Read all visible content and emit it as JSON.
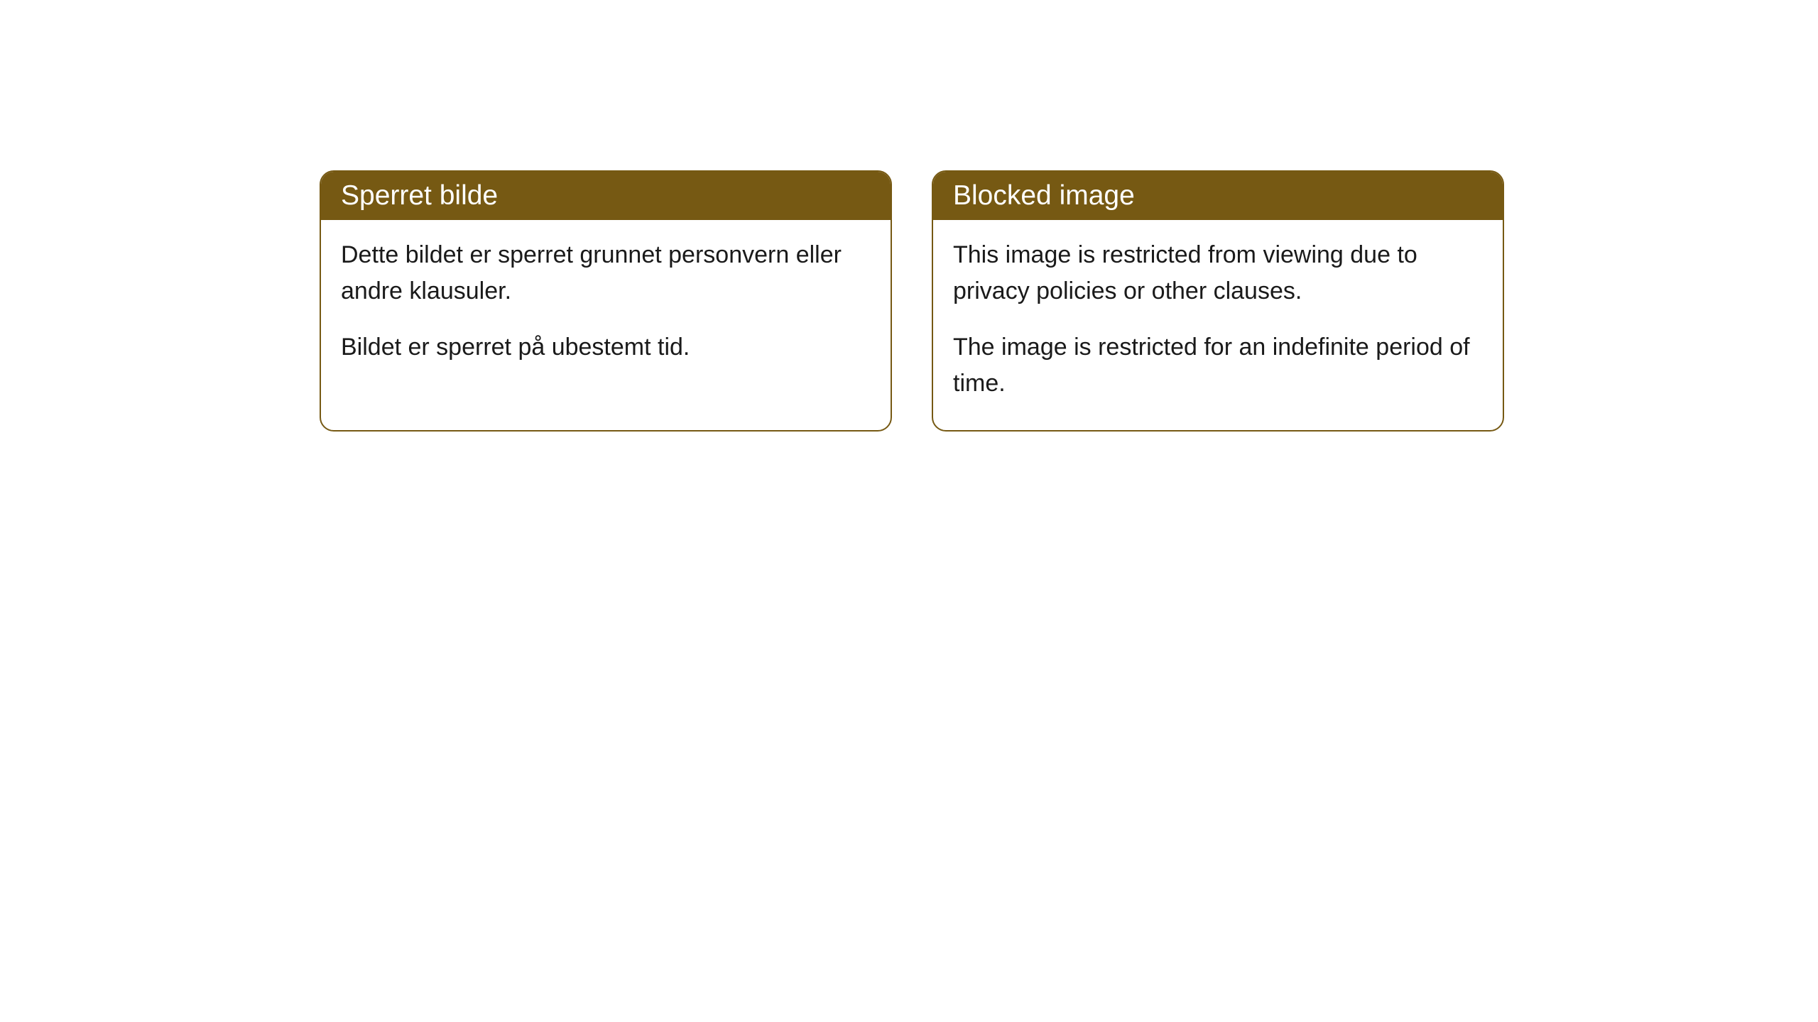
{
  "cards": [
    {
      "header": "Sperret bilde",
      "paragraph1": "Dette bildet er sperret grunnet personvern eller andre klausuler.",
      "paragraph2": "Bildet er sperret på ubestemt tid."
    },
    {
      "header": "Blocked image",
      "paragraph1": "This image is restricted from viewing due to privacy policies or other clauses.",
      "paragraph2": "The image is restricted for an indefinite period of time."
    }
  ],
  "styling": {
    "header_background": "#765913",
    "header_text_color": "#ffffff",
    "border_color": "#765913",
    "body_text_color": "#1a1a1a",
    "card_background": "#ffffff",
    "page_background": "#ffffff",
    "border_radius": 20,
    "header_fontsize": 39,
    "body_fontsize": 34
  }
}
